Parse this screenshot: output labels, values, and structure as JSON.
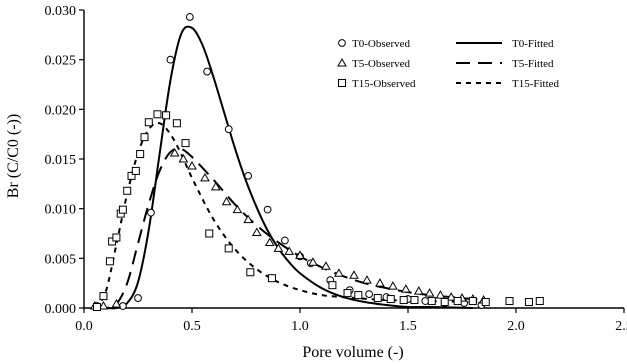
{
  "chart_data": {
    "type": "scatter",
    "title": "",
    "xlabel": "Pore volume  (-)",
    "ylabel": "Br (C/C0 (-))",
    "xlim": [
      0.0,
      2.5
    ],
    "ylim": [
      0.0,
      0.03
    ],
    "xticks": [
      "0.0",
      "0.5",
      "1.0",
      "1.5",
      "2.0",
      "2.5"
    ],
    "yticks": [
      "0.000",
      "0.005",
      "0.010",
      "0.015",
      "0.020",
      "0.025",
      "0.030"
    ],
    "grid": false,
    "legend_position": "top-right",
    "observed": [
      {
        "name": "T0-Observed",
        "marker": "circle",
        "points": [
          [
            0.06,
            0.0002
          ],
          [
            0.18,
            0.0002
          ],
          [
            0.25,
            0.001
          ],
          [
            0.31,
            0.0096
          ],
          [
            0.4,
            0.025
          ],
          [
            0.49,
            0.0293
          ],
          [
            0.57,
            0.0238
          ],
          [
            0.67,
            0.018
          ],
          [
            0.76,
            0.0133
          ],
          [
            0.85,
            0.0099
          ],
          [
            0.93,
            0.0068
          ],
          [
            1.0,
            0.0052
          ],
          [
            1.05,
            0.0045
          ],
          [
            1.14,
            0.0028
          ],
          [
            1.23,
            0.0018
          ],
          [
            1.32,
            0.0014
          ],
          [
            1.4,
            0.0011
          ],
          [
            1.5,
            0.0009
          ],
          [
            1.58,
            0.0007
          ],
          [
            1.67,
            0.0005
          ],
          [
            1.76,
            0.0005
          ],
          [
            1.84,
            0.0003
          ]
        ]
      },
      {
        "name": "T5-Observed",
        "marker": "triangle",
        "points": [
          [
            0.05,
            0.0002
          ],
          [
            0.09,
            0.0002
          ],
          [
            0.15,
            0.0004
          ],
          [
            0.42,
            0.0156
          ],
          [
            0.46,
            0.015
          ],
          [
            0.5,
            0.0143
          ],
          [
            0.56,
            0.0131
          ],
          [
            0.61,
            0.0122
          ],
          [
            0.66,
            0.0107
          ],
          [
            0.71,
            0.0099
          ],
          [
            0.76,
            0.0089
          ],
          [
            0.8,
            0.0076
          ],
          [
            0.86,
            0.0066
          ],
          [
            0.9,
            0.006
          ],
          [
            0.95,
            0.0057
          ],
          [
            1.0,
            0.0053
          ],
          [
            1.06,
            0.0046
          ],
          [
            1.12,
            0.0042
          ],
          [
            1.18,
            0.0035
          ],
          [
            1.25,
            0.0033
          ],
          [
            1.31,
            0.0028
          ],
          [
            1.37,
            0.0025
          ],
          [
            1.43,
            0.0022
          ],
          [
            1.49,
            0.0019
          ],
          [
            1.55,
            0.0017
          ],
          [
            1.6,
            0.0015
          ],
          [
            1.65,
            0.0013
          ],
          [
            1.7,
            0.0011
          ],
          [
            1.75,
            0.001
          ],
          [
            1.8,
            0.0009
          ],
          [
            1.85,
            0.0008
          ]
        ]
      },
      {
        "name": "T15-Observed",
        "marker": "square",
        "points": [
          [
            0.06,
            0.0001
          ],
          [
            0.09,
            0.0012
          ],
          [
            0.12,
            0.0047
          ],
          [
            0.13,
            0.0067
          ],
          [
            0.15,
            0.0071
          ],
          [
            0.17,
            0.0095
          ],
          [
            0.18,
            0.0099
          ],
          [
            0.2,
            0.0118
          ],
          [
            0.22,
            0.0133
          ],
          [
            0.24,
            0.0138
          ],
          [
            0.26,
            0.0155
          ],
          [
            0.28,
            0.0172
          ],
          [
            0.3,
            0.0187
          ],
          [
            0.34,
            0.0195
          ],
          [
            0.38,
            0.0194
          ],
          [
            0.43,
            0.0186
          ],
          [
            0.47,
            0.0166
          ],
          [
            0.58,
            0.0075
          ],
          [
            0.67,
            0.006
          ],
          [
            0.77,
            0.0036
          ],
          [
            0.87,
            0.003
          ],
          [
            1.15,
            0.0023
          ],
          [
            1.22,
            0.0015
          ],
          [
            1.27,
            0.0013
          ],
          [
            1.36,
            0.001
          ],
          [
            1.42,
            0.0009
          ],
          [
            1.48,
            0.0008
          ],
          [
            1.53,
            0.0008
          ],
          [
            1.61,
            0.0007
          ],
          [
            1.67,
            0.0006
          ],
          [
            1.73,
            0.0007
          ],
          [
            1.8,
            0.0007
          ],
          [
            1.86,
            0.0006
          ],
          [
            1.97,
            0.0007
          ],
          [
            2.06,
            0.0006
          ],
          [
            2.11,
            0.0007
          ]
        ]
      }
    ],
    "fitted": [
      {
        "name": "T0-Fitted",
        "style": "solid",
        "points": [
          [
            0.05,
            0.0
          ],
          [
            0.1,
            0.0
          ],
          [
            0.15,
            0.0
          ],
          [
            0.2,
            0.0005
          ],
          [
            0.25,
            0.0026
          ],
          [
            0.3,
            0.0079
          ],
          [
            0.35,
            0.0155
          ],
          [
            0.4,
            0.0229
          ],
          [
            0.45,
            0.0276
          ],
          [
            0.5,
            0.0282
          ],
          [
            0.55,
            0.0264
          ],
          [
            0.6,
            0.0232
          ],
          [
            0.65,
            0.0196
          ],
          [
            0.7,
            0.016
          ],
          [
            0.75,
            0.0128
          ],
          [
            0.8,
            0.0101
          ],
          [
            0.85,
            0.0078
          ],
          [
            0.9,
            0.006
          ],
          [
            0.95,
            0.0046
          ],
          [
            1.0,
            0.0035
          ],
          [
            1.1,
            0.002
          ],
          [
            1.2,
            0.0011
          ],
          [
            1.3,
            0.0006
          ],
          [
            1.4,
            0.0003
          ],
          [
            1.5,
            0.0001
          ],
          [
            1.6,
            0.0001
          ],
          [
            1.8,
            0.0
          ]
        ]
      },
      {
        "name": "T5-Fitted",
        "style": "dashed",
        "points": [
          [
            0.05,
            0.0
          ],
          [
            0.1,
            0.0
          ],
          [
            0.15,
            0.0004
          ],
          [
            0.2,
            0.0025
          ],
          [
            0.25,
            0.0065
          ],
          [
            0.3,
            0.0105
          ],
          [
            0.35,
            0.0138
          ],
          [
            0.4,
            0.0157
          ],
          [
            0.45,
            0.016
          ],
          [
            0.5,
            0.0152
          ],
          [
            0.6,
            0.0129
          ],
          [
            0.7,
            0.0104
          ],
          [
            0.8,
            0.0083
          ],
          [
            0.9,
            0.0066
          ],
          [
            1.0,
            0.0052
          ],
          [
            1.1,
            0.0041
          ],
          [
            1.2,
            0.0032
          ],
          [
            1.3,
            0.0025
          ],
          [
            1.4,
            0.002
          ],
          [
            1.5,
            0.0016
          ],
          [
            1.6,
            0.0013
          ],
          [
            1.7,
            0.0011
          ],
          [
            1.8,
            0.0009
          ],
          [
            1.85,
            0.0008
          ]
        ]
      },
      {
        "name": "T15-Fitted",
        "style": "dotted",
        "points": [
          [
            0.05,
            0.0
          ],
          [
            0.1,
            0.0016
          ],
          [
            0.15,
            0.0064
          ],
          [
            0.2,
            0.0115
          ],
          [
            0.25,
            0.0156
          ],
          [
            0.3,
            0.018
          ],
          [
            0.35,
            0.0186
          ],
          [
            0.4,
            0.0175
          ],
          [
            0.45,
            0.0155
          ],
          [
            0.5,
            0.0131
          ],
          [
            0.6,
            0.0089
          ],
          [
            0.7,
            0.0059
          ],
          [
            0.8,
            0.0039
          ],
          [
            0.9,
            0.0026
          ],
          [
            1.0,
            0.0018
          ],
          [
            1.1,
            0.0013
          ],
          [
            1.2,
            0.0011
          ],
          [
            1.4,
            0.0008
          ],
          [
            1.6,
            0.0007
          ],
          [
            1.8,
            0.0006
          ]
        ]
      }
    ]
  }
}
